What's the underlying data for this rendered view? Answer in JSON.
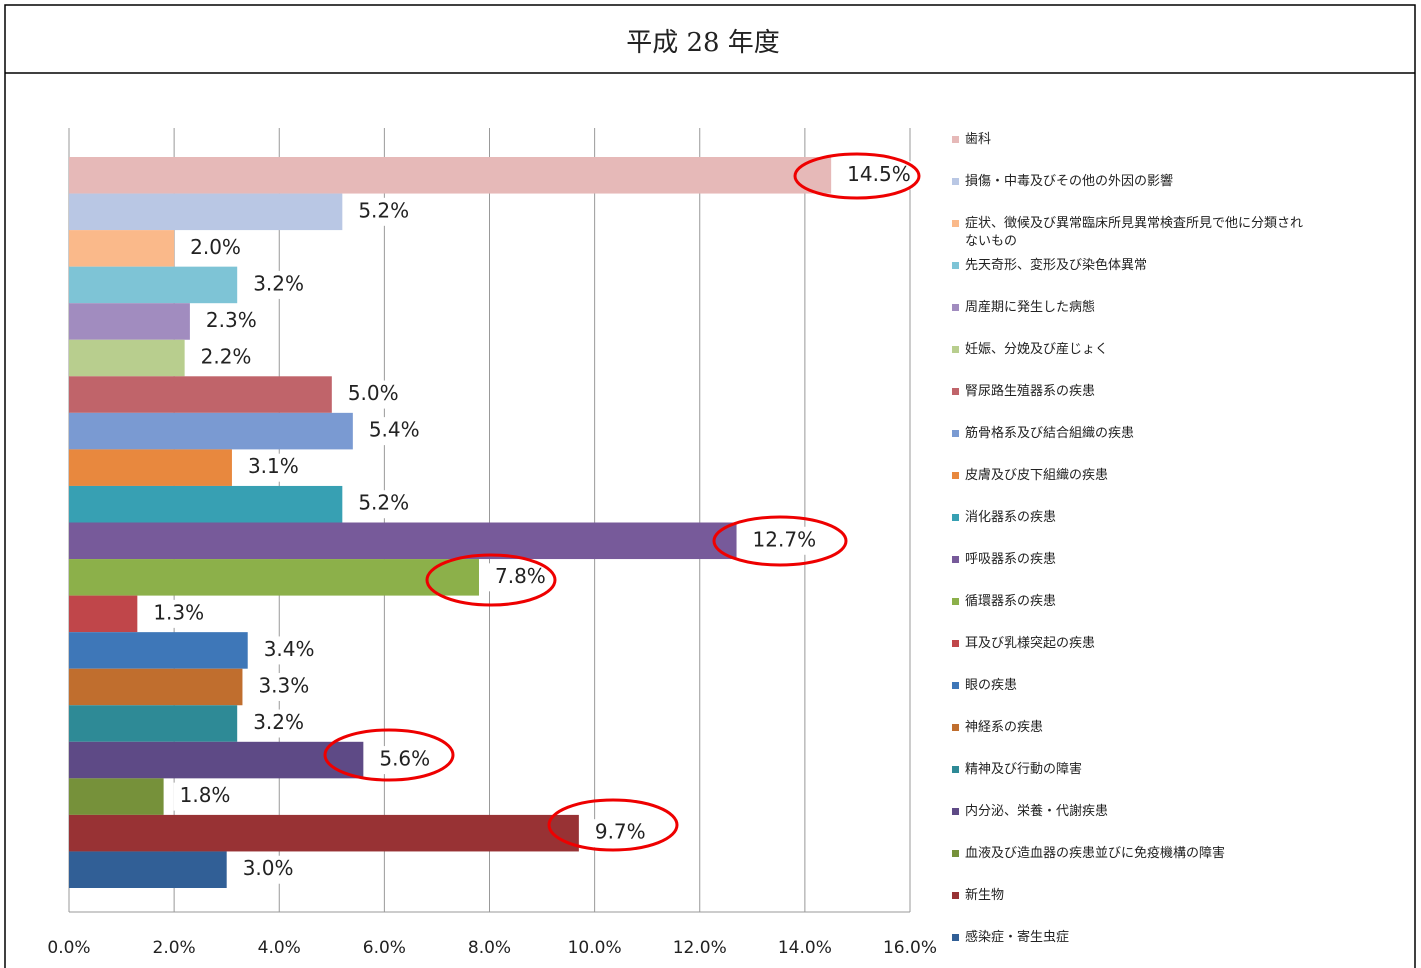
{
  "chart_data": {
    "type": "bar",
    "orientation": "horizontal",
    "title": "平成 28 年度",
    "categories": [
      "歯科",
      "損傷・中毒及びその他の外因の影響",
      "症状、徴候及び異常臨床所見異常検査所見で他に分類されないもの",
      "先天奇形、変形及び染色体異常",
      "周産期に発生した病態",
      "妊娠、分娩及び産じょく",
      "腎尿路生殖器系の疾患",
      "筋骨格系及び結合組織の疾患",
      "皮膚及び皮下組織の疾患",
      "消化器系の疾患",
      "呼吸器系の疾患",
      "循環器系の疾患",
      "耳及び乳様突起の疾患",
      "眼の疾患",
      "神経系の疾患",
      "精神及び行動の障害",
      "内分泌、栄養・代謝疾患",
      "血液及び造血器の疾患並びに免疫機構の障害",
      "新生物",
      "感染症・寄生虫症"
    ],
    "values": [
      14.5,
      5.2,
      2.0,
      3.2,
      2.3,
      2.2,
      5.0,
      5.4,
      3.1,
      5.2,
      12.7,
      7.8,
      1.3,
      3.4,
      3.3,
      3.2,
      5.6,
      1.8,
      9.7,
      3.0
    ],
    "value_labels": [
      "14.5%",
      "5.2%",
      "2.0%",
      "3.2%",
      "2.3%",
      "2.2%",
      "5.0%",
      "5.4%",
      "3.1%",
      "5.2%",
      "12.7%",
      "7.8%",
      "1.3%",
      "3.4%",
      "3.3%",
      "3.2%",
      "5.6%",
      "1.8%",
      "9.7%",
      "3.0%"
    ],
    "colors": [
      "#e6b9b8",
      "#b9c7e4",
      "#fab98a",
      "#7ec4d6",
      "#a18cbf",
      "#b8ce8e",
      "#c0646a",
      "#7a9ad2",
      "#e8883e",
      "#37a0b3",
      "#775a9a",
      "#8cb04a",
      "#c0464a",
      "#3e77b8",
      "#c06e2e",
      "#2e8a96",
      "#5e4a86",
      "#76913a",
      "#983234",
      "#315f96"
    ],
    "xlim": [
      0,
      16
    ],
    "xticks": [
      {
        "value": 0,
        "label": "0.0%"
      },
      {
        "value": 2,
        "label": "2.0%"
      },
      {
        "value": 4,
        "label": "4.0%"
      },
      {
        "value": 6,
        "label": "6.0%"
      },
      {
        "value": 8,
        "label": "8.0%"
      },
      {
        "value": 10,
        "label": "10.0%"
      },
      {
        "value": 12,
        "label": "12.0%"
      },
      {
        "value": 14,
        "label": "14.0%"
      },
      {
        "value": 16,
        "label": "16.0%"
      }
    ],
    "grid": true
  }
}
